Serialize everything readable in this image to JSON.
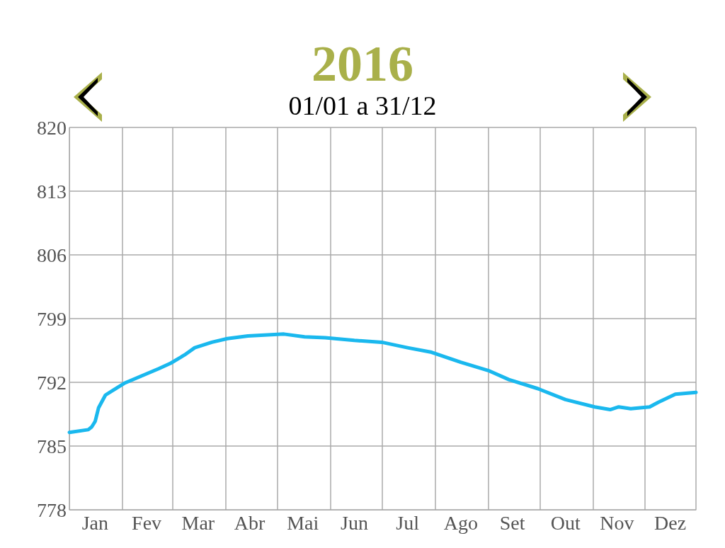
{
  "chart_data": {
    "type": "line",
    "title": "2016",
    "subtitle": "01/01 a 31/12",
    "x": [
      "2016-01-01",
      "2016-01-12",
      "2016-01-14",
      "2016-01-16",
      "2016-01-18",
      "2016-01-22",
      "2016-01-27",
      "2016-02-02",
      "2016-02-12",
      "2016-02-22",
      "2016-02-29",
      "2016-03-08",
      "2016-03-14",
      "2016-03-24",
      "2016-04-02",
      "2016-04-14",
      "2016-05-05",
      "2016-05-17",
      "2016-05-29",
      "2016-06-15",
      "2016-07-01",
      "2016-07-16",
      "2016-07-30",
      "2016-08-16",
      "2016-09-01",
      "2016-09-13",
      "2016-09-30",
      "2016-10-16",
      "2016-11-02",
      "2016-11-11",
      "2016-11-16",
      "2016-11-23",
      "2016-12-04",
      "2016-12-09",
      "2016-12-19",
      "2016-12-31"
    ],
    "series": [
      {
        "color": "#1ab8ee",
        "values": [
          786.5,
          786.8,
          787.1,
          787.7,
          789.2,
          790.6,
          791.2,
          791.9,
          792.7,
          793.5,
          794.1,
          795.0,
          795.8,
          796.4,
          796.8,
          797.1,
          797.3,
          797.0,
          796.9,
          796.6,
          796.4,
          795.8,
          795.3,
          794.2,
          793.3,
          792.3,
          791.3,
          790.1,
          789.3,
          789.0,
          789.3,
          789.1,
          789.3,
          789.8,
          790.7,
          790.9
        ]
      }
    ],
    "xlim": [
      "2016-01-01",
      "2016-12-31"
    ],
    "xticks": [
      {
        "value": "2016-01-01",
        "label": null
      },
      {
        "value": "2016-01-16",
        "label": "Jan"
      },
      {
        "value": "2016-02-01",
        "label": null
      },
      {
        "value": "2016-02-15",
        "label": "Fev"
      },
      {
        "value": "2016-03-01",
        "label": null
      },
      {
        "value": "2016-03-16",
        "label": "Mar"
      },
      {
        "value": "2016-04-01",
        "label": null
      },
      {
        "value": "2016-04-15",
        "label": "Abr"
      },
      {
        "value": "2016-05-01",
        "label": null
      },
      {
        "value": "2016-05-16",
        "label": "Mai"
      },
      {
        "value": "2016-06-01",
        "label": null
      },
      {
        "value": "2016-06-15",
        "label": "Jun"
      },
      {
        "value": "2016-07-01",
        "label": null
      },
      {
        "value": "2016-07-16",
        "label": "Jul"
      },
      {
        "value": "2016-08-01",
        "label": null
      },
      {
        "value": "2016-08-16",
        "label": "Ago"
      },
      {
        "value": "2016-09-01",
        "label": null
      },
      {
        "value": "2016-09-15",
        "label": "Set"
      },
      {
        "value": "2016-10-01",
        "label": null
      },
      {
        "value": "2016-10-16",
        "label": "Out"
      },
      {
        "value": "2016-11-01",
        "label": null
      },
      {
        "value": "2016-11-15",
        "label": "Nov"
      },
      {
        "value": "2016-12-01",
        "label": null
      },
      {
        "value": "2016-12-16",
        "label": "Dez"
      },
      {
        "value": "2016-12-31",
        "label": null
      }
    ],
    "ylim": [
      778,
      820
    ],
    "yticks": [
      778,
      785,
      792,
      799,
      806,
      813,
      820
    ],
    "grid": true,
    "marker": "none",
    "line_style": "solid"
  }
}
